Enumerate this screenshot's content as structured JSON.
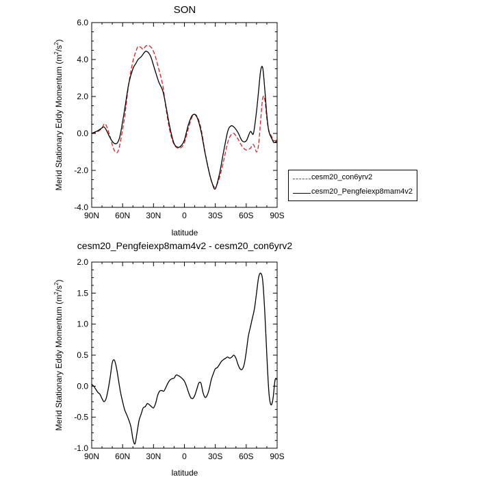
{
  "chart_data": [
    {
      "type": "line",
      "title": "SON",
      "xlabel": "latitude",
      "ylabel_main": "Merid Stationary Eddy Momentum (m",
      "ylabel_sup1": "2",
      "ylabel_mid": "/s",
      "ylabel_sup2": "2",
      "ylabel_end": ")",
      "xlim": [
        90,
        -90
      ],
      "ylim": [
        -4,
        6
      ],
      "xticks": [
        90,
        60,
        30,
        0,
        -30,
        -60,
        -90
      ],
      "xtick_labels": [
        "90N",
        "60N",
        "30N",
        "0",
        "30S",
        "60S",
        "90S"
      ],
      "yticks": [
        -4,
        -2,
        0,
        2,
        4,
        6
      ],
      "ytick_labels": [
        "-4.0",
        "-2.0",
        "0.0",
        "2.0",
        "4.0",
        "6.0"
      ],
      "legend_position": "right",
      "series": [
        {
          "name": "cesm20_con6yrv2",
          "color": "#e41a1c",
          "dash": true,
          "x": [
            90,
            84,
            80,
            78,
            76,
            72,
            69,
            66,
            64,
            62,
            58,
            54,
            50,
            47,
            45,
            42,
            40,
            37,
            33,
            29,
            25,
            21,
            18,
            14,
            10,
            6,
            3,
            0,
            -4,
            -8,
            -12,
            -16,
            -20,
            -24,
            -27,
            -30,
            -34,
            -38,
            -42,
            -45,
            -48,
            -52,
            -56,
            -60,
            -64,
            -67,
            -70,
            -72,
            -74,
            -76,
            -78,
            -80,
            -82,
            -85,
            -87,
            -90
          ],
          "y": [
            0.0,
            0.1,
            0.3,
            0.5,
            0.45,
            -0.2,
            -0.8,
            -1.05,
            -0.9,
            -0.4,
            0.9,
            2.7,
            3.9,
            4.45,
            4.7,
            4.65,
            4.55,
            4.75,
            4.7,
            4.3,
            3.5,
            2.6,
            1.4,
            0.1,
            -0.6,
            -0.8,
            -0.75,
            -0.5,
            0.3,
            0.95,
            0.95,
            0.3,
            -1.0,
            -2.1,
            -2.7,
            -2.9,
            -2.4,
            -1.5,
            -0.5,
            -0.1,
            0.0,
            -0.3,
            -0.7,
            -0.9,
            -0.8,
            -0.6,
            -1.0,
            -0.6,
            0.7,
            1.9,
            1.85,
            0.8,
            0.15,
            -0.2,
            -0.4,
            -0.35
          ]
        },
        {
          "name": "cesm20_Pengfeiexp8mam4v2",
          "color": "#000000",
          "dash": false,
          "x": [
            90,
            84,
            80,
            78,
            76,
            72,
            69,
            66,
            64,
            62,
            58,
            54,
            50,
            47,
            45,
            42,
            40,
            37,
            33,
            29,
            25,
            21,
            18,
            14,
            10,
            6,
            3,
            0,
            -4,
            -8,
            -12,
            -16,
            -20,
            -24,
            -27,
            -30,
            -34,
            -38,
            -42,
            -45,
            -48,
            -52,
            -56,
            -60,
            -64,
            -67,
            -70,
            -72,
            -74,
            -76,
            -78,
            -80,
            -82,
            -85,
            -87,
            -90
          ],
          "y": [
            0.0,
            0.15,
            0.3,
            0.35,
            0.2,
            -0.25,
            -0.5,
            -0.55,
            -0.4,
            0.0,
            1.3,
            2.7,
            3.5,
            3.8,
            4.0,
            4.15,
            4.3,
            4.45,
            4.2,
            3.5,
            2.8,
            2.3,
            1.5,
            0.3,
            -0.55,
            -0.75,
            -0.65,
            -0.35,
            0.5,
            1.0,
            0.9,
            0.15,
            -1.05,
            -2.1,
            -2.7,
            -3.0,
            -2.2,
            -1.0,
            0.1,
            0.4,
            0.35,
            0.05,
            -0.4,
            -0.4,
            0.1,
            0.0,
            1.2,
            2.3,
            3.4,
            3.55,
            2.4,
            1.0,
            0.1,
            -0.3,
            -0.5,
            -0.4
          ]
        }
      ]
    },
    {
      "type": "line",
      "title": "cesm20_Pengfeiexp8mam4v2 - cesm20_con6yrv2",
      "xlabel": "latitude",
      "ylabel_main": "Merid Stationary Eddy Momentum (m",
      "ylabel_sup1": "2",
      "ylabel_mid": "/s",
      "ylabel_sup2": "2",
      "ylabel_end": ")",
      "xlim": [
        90,
        -90
      ],
      "ylim": [
        -1.0,
        2.0
      ],
      "xticks": [
        90,
        60,
        30,
        0,
        -30,
        -60,
        -90
      ],
      "xtick_labels": [
        "90N",
        "60N",
        "30N",
        "0",
        "30S",
        "60S",
        "90S"
      ],
      "yticks": [
        -1.0,
        -0.5,
        0.0,
        0.5,
        1.0,
        1.5,
        2.0
      ],
      "ytick_labels": [
        "-1.0",
        "-0.5",
        "0.0",
        "0.5",
        "1.0",
        "1.5",
        "2.0"
      ],
      "series": [
        {
          "color": "#000000",
          "dash": false,
          "x": [
            90,
            88,
            86,
            84,
            82,
            80,
            78,
            76,
            74,
            72,
            70,
            68,
            66,
            64,
            62,
            60,
            58,
            55,
            52,
            50,
            48,
            46,
            44,
            42,
            40,
            38,
            36,
            34,
            32,
            30,
            28,
            26,
            24,
            22,
            20,
            18,
            16,
            14,
            12,
            10,
            8,
            6,
            4,
            2,
            0,
            -2,
            -4,
            -6,
            -8,
            -10,
            -12,
            -14,
            -16,
            -18,
            -20,
            -22,
            -24,
            -26,
            -28,
            -30,
            -32,
            -34,
            -36,
            -38,
            -40,
            -42,
            -44,
            -46,
            -48,
            -50,
            -52,
            -54,
            -56,
            -58,
            -60,
            -62,
            -64,
            -66,
            -68,
            -70,
            -72,
            -74,
            -76,
            -78,
            -80,
            -82,
            -84,
            -86,
            -88,
            -90
          ],
          "y": [
            0.03,
            0.0,
            -0.05,
            -0.1,
            -0.13,
            -0.2,
            -0.25,
            -0.2,
            -0.05,
            0.15,
            0.38,
            0.42,
            0.3,
            0.1,
            -0.1,
            -0.25,
            -0.38,
            -0.5,
            -0.65,
            -0.85,
            -0.93,
            -0.75,
            -0.55,
            -0.45,
            -0.35,
            -0.33,
            -0.28,
            -0.3,
            -0.33,
            -0.35,
            -0.28,
            -0.15,
            -0.08,
            -0.07,
            -0.08,
            -0.02,
            0.05,
            0.1,
            0.12,
            0.13,
            0.18,
            0.17,
            0.15,
            0.12,
            0.08,
            0.0,
            -0.1,
            -0.18,
            -0.2,
            -0.15,
            -0.05,
            0.05,
            0.05,
            -0.1,
            -0.18,
            -0.15,
            -0.05,
            0.1,
            0.2,
            0.28,
            0.3,
            0.35,
            0.4,
            0.43,
            0.45,
            0.47,
            0.45,
            0.47,
            0.5,
            0.45,
            0.35,
            0.28,
            0.27,
            0.35,
            0.55,
            0.8,
            0.95,
            1.1,
            1.25,
            1.5,
            1.75,
            1.82,
            1.7,
            1.2,
            0.5,
            -0.1,
            -0.3,
            -0.2,
            0.1,
            0.1
          ]
        }
      ]
    }
  ],
  "legend": {
    "entries": [
      {
        "label": "cesm20_con6yrv2",
        "color": "#e41a1c",
        "dash": true
      },
      {
        "label": "cesm20_Pengfeiexp8mam4v2",
        "color": "#000000",
        "dash": false
      }
    ]
  }
}
